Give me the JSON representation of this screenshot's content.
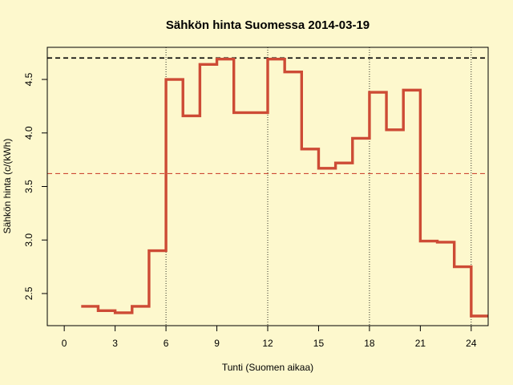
{
  "chart_data": {
    "type": "line",
    "title": "Sähkön hinta Suomessa 2014-03-19",
    "xlabel": "Tunti (Suomen aikaa)",
    "ylabel": "Sähkön hinta (c/(kWh)",
    "xlim": [
      -1,
      25
    ],
    "ylim": [
      2.2,
      4.8
    ],
    "x_ticks": [
      0,
      3,
      6,
      9,
      12,
      15,
      18,
      21,
      24
    ],
    "y_ticks": [
      2.5,
      3.0,
      3.5,
      4.0,
      4.5
    ],
    "x_tick_labels": [
      "0",
      "3",
      "6",
      "9",
      "12",
      "15",
      "18",
      "21",
      "24"
    ],
    "y_tick_labels": [
      "2.5",
      "3.0",
      "3.5",
      "4.0",
      "4.5"
    ],
    "vertical_gridlines_x": [
      6,
      12,
      18,
      24
    ],
    "series": [
      {
        "step": "post",
        "color": "#cd4b35",
        "x": [
          1,
          2,
          3,
          4,
          5,
          6,
          7,
          8,
          9,
          10,
          11,
          12,
          13,
          14,
          15,
          16,
          17,
          18,
          19,
          20,
          21,
          22,
          23,
          24
        ],
        "values": [
          2.38,
          2.34,
          2.32,
          2.38,
          2.9,
          4.5,
          4.16,
          4.64,
          4.69,
          4.19,
          4.19,
          4.69,
          4.57,
          3.85,
          3.67,
          3.72,
          3.95,
          4.38,
          4.03,
          4.4,
          2.99,
          2.98,
          2.75,
          2.29
        ]
      }
    ],
    "reference_lines": [
      {
        "y": 4.7,
        "color": "#000000",
        "style": "dashed"
      },
      {
        "y": 3.62,
        "color": "#cd4b35",
        "style": "dashed"
      }
    ],
    "grid": false
  }
}
